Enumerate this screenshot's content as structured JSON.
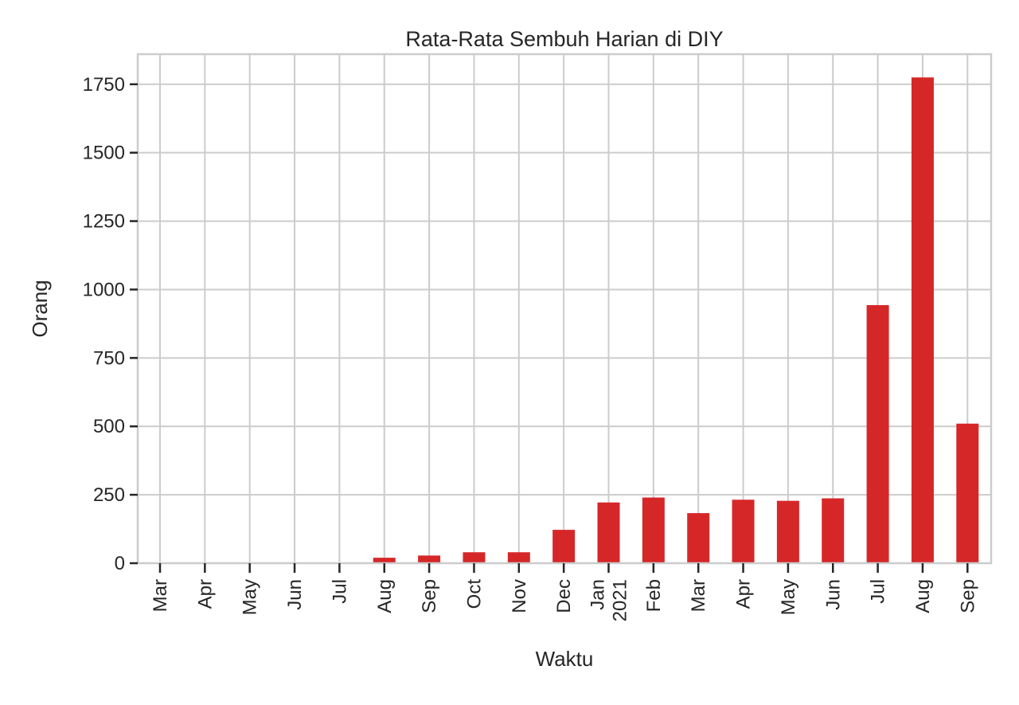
{
  "chart_data": {
    "type": "bar",
    "title": "Rata-Rata Sembuh Harian di DIY",
    "xlabel": "Waktu",
    "ylabel": "Orang",
    "categories": [
      "Mar",
      "Apr",
      "May",
      "Jun",
      "Jul",
      "Aug",
      "Sep",
      "Oct",
      "Nov",
      "Dec",
      "Jan\n2021",
      "Feb",
      "Mar",
      "Apr",
      "May",
      "Jun",
      "Jul",
      "Aug",
      "Sep"
    ],
    "values": [
      0,
      0,
      0,
      0,
      0,
      20,
      28,
      40,
      40,
      122,
      222,
      240,
      183,
      232,
      228,
      237,
      943,
      1775,
      510
    ],
    "ylim": [
      0,
      1860
    ],
    "yticks": [
      0,
      250,
      500,
      750,
      1000,
      1250,
      1500,
      1750
    ],
    "bar_color": "#d62728",
    "grid": true,
    "legend": "none"
  }
}
